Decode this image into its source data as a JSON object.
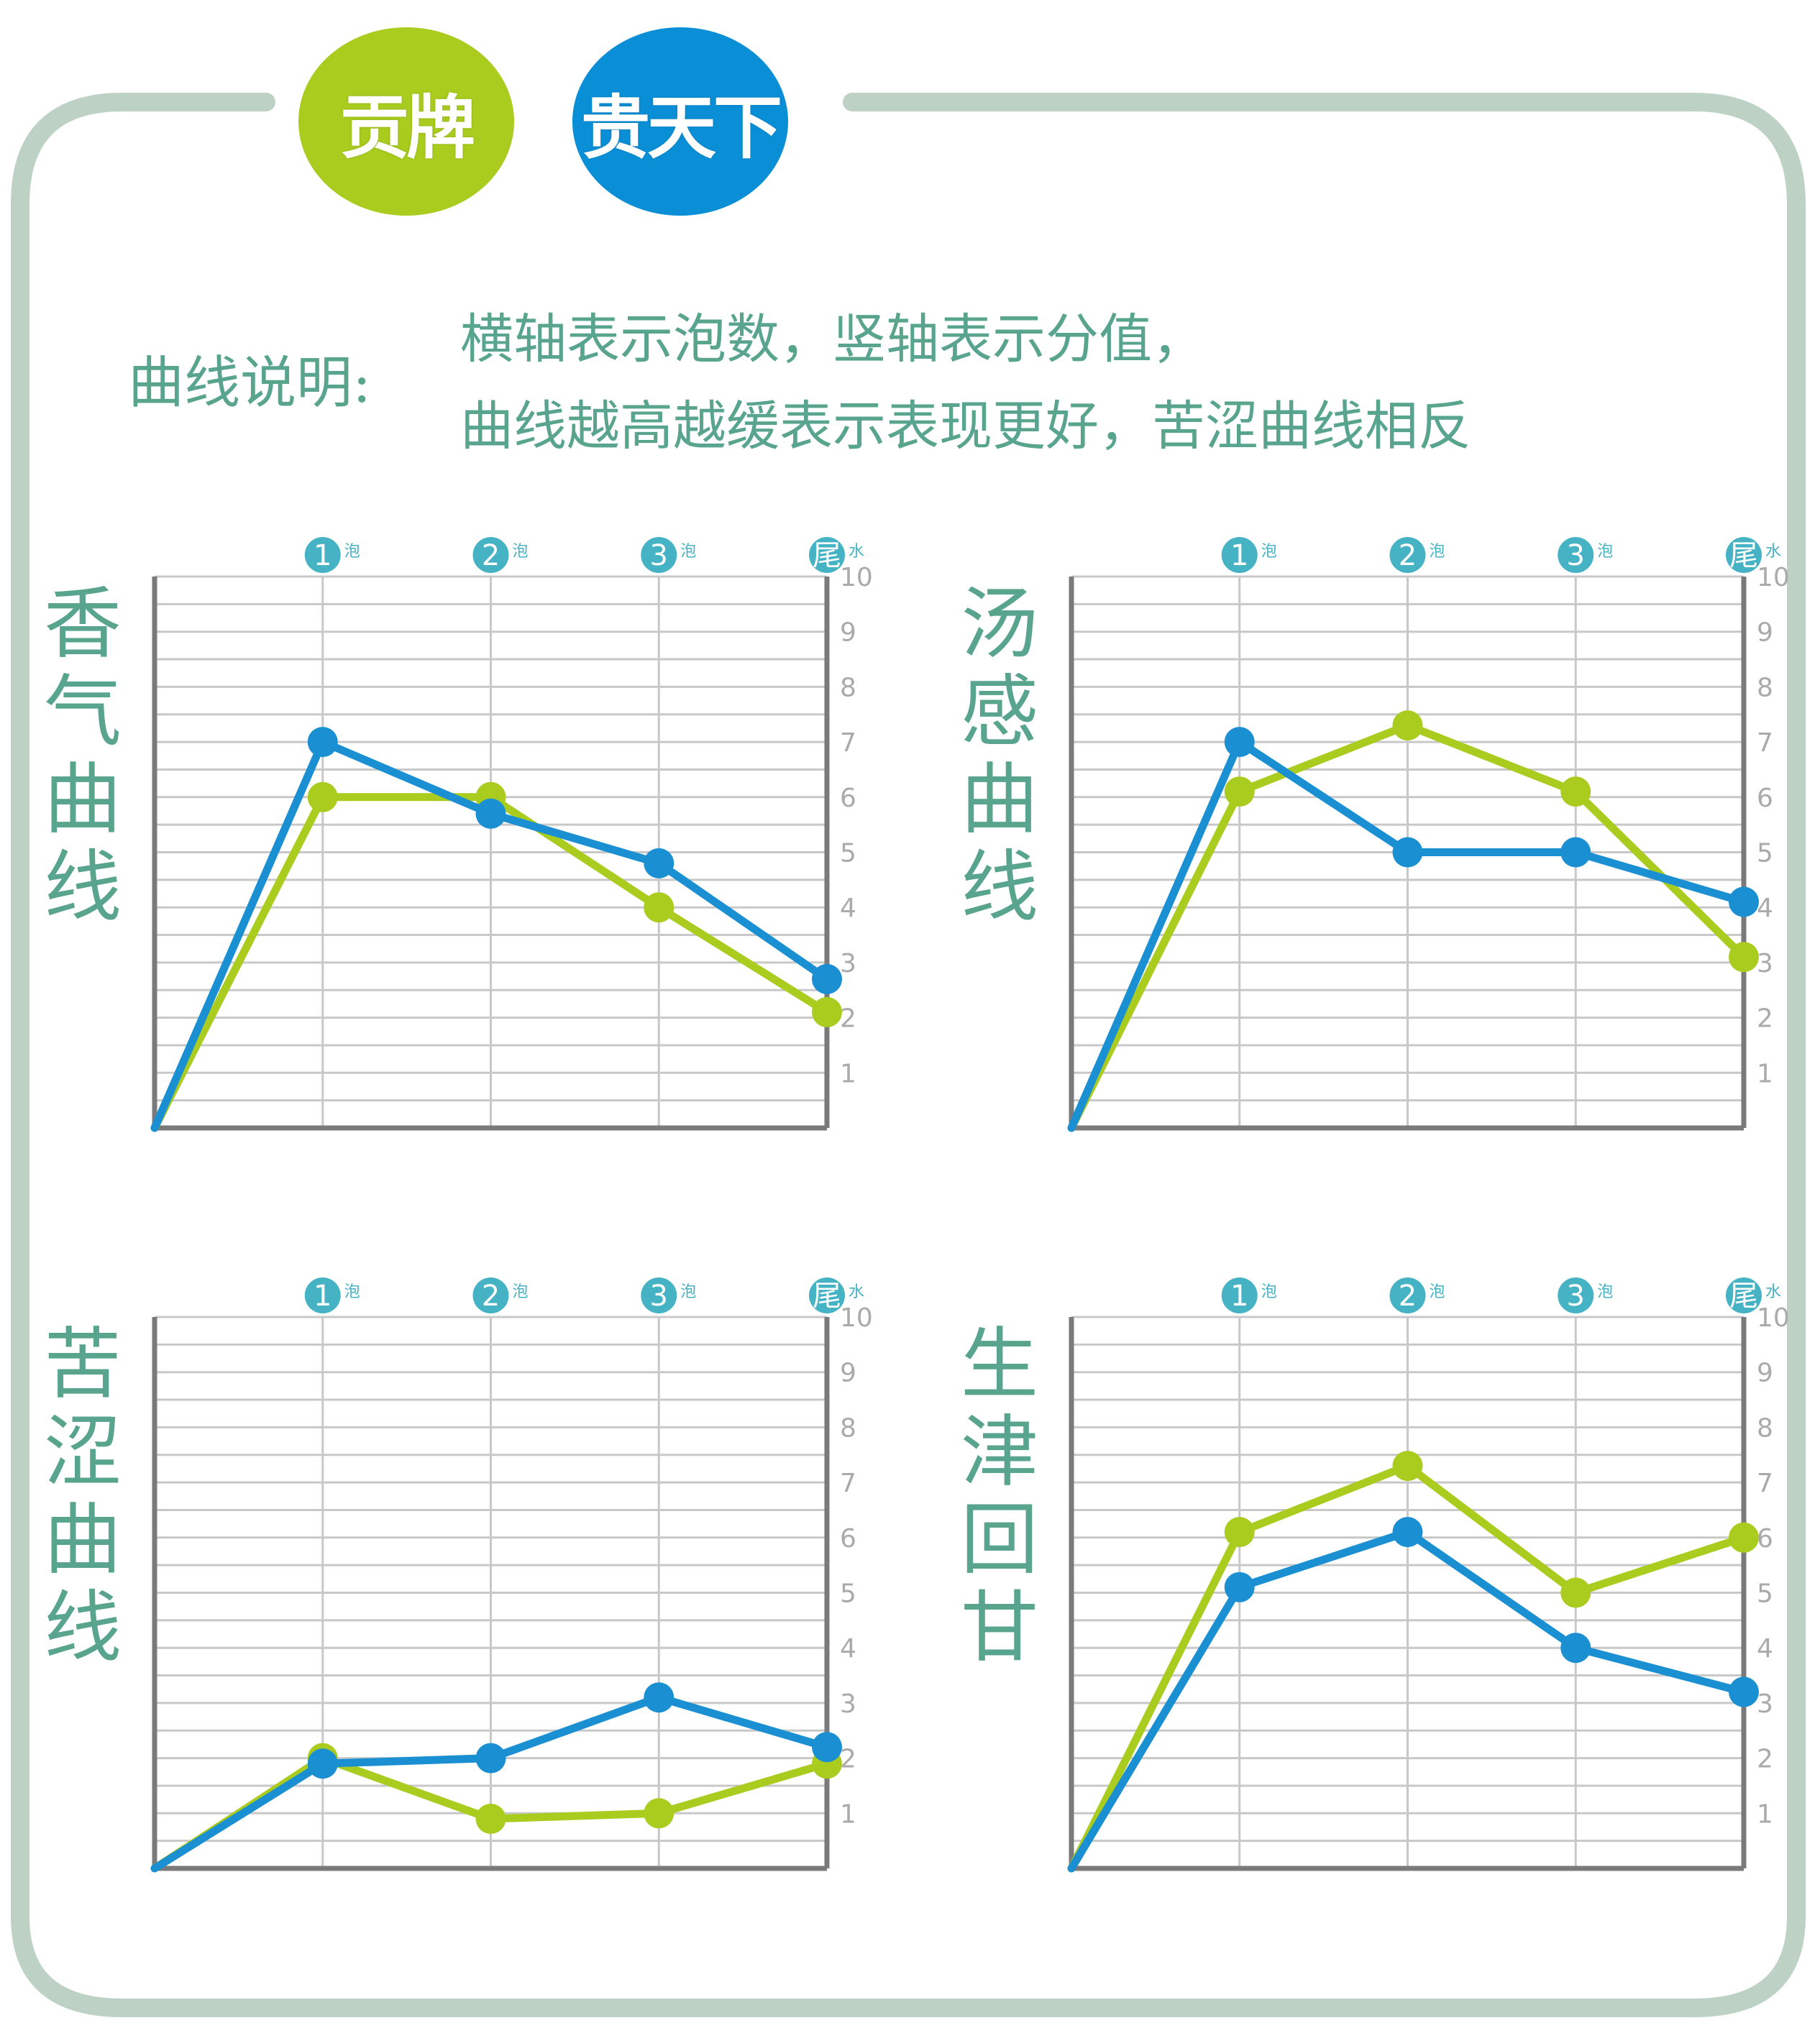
{
  "brand": {
    "left_label": "贡牌",
    "right_label": "贵天下",
    "left_color": "#a9cc1f",
    "right_color": "#0a8fd6"
  },
  "legend": {
    "label": "曲线说明:",
    "line1": "横轴表示泡数，竖轴表示分值，",
    "line2": "曲线越高越缓表示表现更好，苦涩曲线相反"
  },
  "colors": {
    "frame": "#bdd2c4",
    "text": "#58a48c",
    "grid": "#c8c8c8",
    "axis": "#7a7a7a",
    "tick_badge": "#45b3c4",
    "series_green": "#a9cc1f",
    "series_blue": "#1a8fd2"
  },
  "chart_data": [
    {
      "type": "line",
      "title": "香气曲线",
      "x": [
        "1",
        "2",
        "3",
        "尾"
      ],
      "x_tick_suffix": [
        "泡",
        "泡",
        "泡",
        "水"
      ],
      "yticks": [
        1,
        2,
        3,
        4,
        5,
        6,
        7,
        8,
        9,
        10
      ],
      "ylim": [
        0,
        10
      ],
      "origin_value": 0,
      "series": [
        {
          "color": "#a9cc1f",
          "values": [
            6.0,
            6.0,
            4.0,
            2.1
          ]
        },
        {
          "color": "#1a8fd2",
          "values": [
            7.0,
            5.7,
            4.8,
            2.7
          ]
        }
      ]
    },
    {
      "type": "line",
      "title": "汤感曲线",
      "x": [
        "1",
        "2",
        "3",
        "尾"
      ],
      "x_tick_suffix": [
        "泡",
        "泡",
        "泡",
        "水"
      ],
      "yticks": [
        1,
        2,
        3,
        4,
        5,
        6,
        7,
        8,
        9,
        10
      ],
      "ylim": [
        0,
        10
      ],
      "origin_value": 0,
      "series": [
        {
          "color": "#a9cc1f",
          "values": [
            6.1,
            7.3,
            6.1,
            3.1
          ]
        },
        {
          "color": "#1a8fd2",
          "values": [
            7.0,
            5.0,
            5.0,
            4.1
          ]
        }
      ]
    },
    {
      "type": "line",
      "title": "苦涩曲线",
      "x": [
        "1",
        "2",
        "3",
        "尾"
      ],
      "x_tick_suffix": [
        "泡",
        "泡",
        "泡",
        "水"
      ],
      "yticks": [
        1,
        2,
        3,
        4,
        5,
        6,
        7,
        8,
        9,
        10
      ],
      "ylim": [
        0,
        10
      ],
      "origin_value": 0,
      "series": [
        {
          "color": "#a9cc1f",
          "values": [
            2.0,
            0.9,
            1.0,
            1.9
          ]
        },
        {
          "color": "#1a8fd2",
          "values": [
            1.9,
            2.0,
            3.1,
            2.2
          ]
        }
      ]
    },
    {
      "type": "line",
      "title": "生津回甘",
      "x": [
        "1",
        "2",
        "3",
        "尾"
      ],
      "x_tick_suffix": [
        "泡",
        "泡",
        "泡",
        "水"
      ],
      "yticks": [
        1,
        2,
        3,
        4,
        5,
        6,
        7,
        8,
        9,
        10
      ],
      "ylim": [
        0,
        10
      ],
      "origin_value": 0,
      "series": [
        {
          "color": "#a9cc1f",
          "values": [
            6.1,
            7.3,
            5.0,
            6.0
          ]
        },
        {
          "color": "#1a8fd2",
          "values": [
            5.1,
            6.1,
            4.0,
            3.2
          ]
        }
      ]
    }
  ]
}
